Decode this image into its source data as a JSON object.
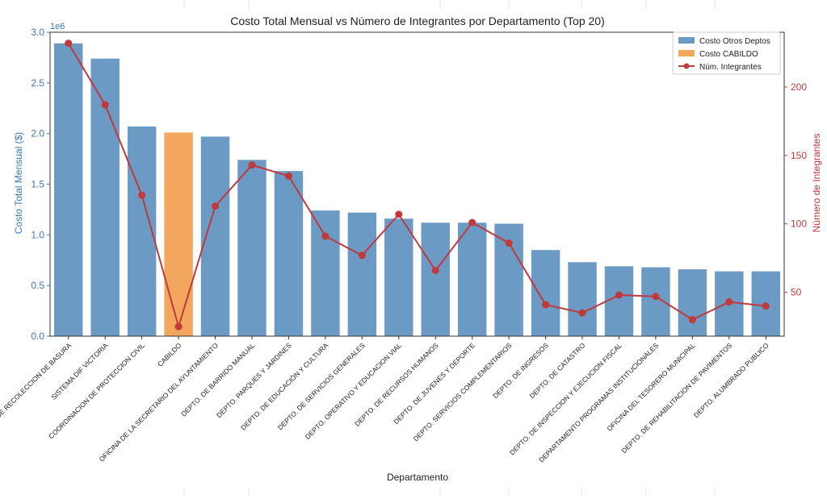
{
  "chart_data": {
    "type": "bar",
    "title": "Costo Total Mensual vs Número de Integrantes por Departamento (Top 20)",
    "xlabel": "Departamento",
    "ylabel_left": "Costo Total Mensual ($)",
    "ylabel_right": "Número de Integrantes",
    "left_axis_multiplier": "1e6",
    "left_ylim": [
      0,
      3.0
    ],
    "left_ticks": [
      "0.0",
      "0.5",
      "1.0",
      "1.5",
      "2.0",
      "2.5",
      "3.0"
    ],
    "right_ylim": [
      18,
      240
    ],
    "right_ticks": [
      "50",
      "100",
      "150",
      "200"
    ],
    "legend_position": "top-right",
    "legend": [
      "Costo Otros Deptos",
      "Costo CABILDO",
      "Núm. Integrantes"
    ],
    "categories": [
      "DEPTO. DE RECOLECCION DE BASURA",
      "SISTEMA DIF VICTORIA",
      "COORDINACION DE PROTECCION CIVIL",
      "CABILDO",
      "OFICINA DE LA SECRETARIO DEL AYUNTAMIENTO",
      "DEPTO. DE BARRIDO MANUAL",
      "DEPTO. PARQUES Y JARDINES",
      "DEPTO. DE EDUCACIÓN Y CULTURA",
      "DEPTO. DE SERVICIOS GENERALES",
      "DEPTO. OPERATIVO Y EDUCACION VIAL",
      "DEPTO. DE RECURSOS HUMANOS",
      "DEPTO. DE JUVENES Y DEPORTE",
      "DEPTO. SERVICIOS COMPLEMENTARIOS",
      "DEPTO. DE INGRESOS",
      "DEPTO. DE CATASTRO",
      "DEPTO. DE INSPECCION Y EJECUCION FISCAL",
      "DEPARTAMENTO PROGRAMAS INSTITUCIONALES",
      "OFICINA DEL TESORERO MUNICIPAL",
      "DEPTO. DE REHABILITACION DE PAVIMENTOS",
      "DEPTO. ALUMBRADO PUBLICO"
    ],
    "highlight_category": "CABILDO",
    "series": [
      {
        "name": "Costo Otros Deptos",
        "axis": "left",
        "kind": "bar",
        "values": [
          2.89,
          2.74,
          2.07,
          2.01,
          1.97,
          1.74,
          1.63,
          1.24,
          1.22,
          1.16,
          1.12,
          1.12,
          1.11,
          0.85,
          0.73,
          0.69,
          0.68,
          0.66,
          0.64,
          0.64
        ]
      },
      {
        "name": "Núm. Integrantes",
        "axis": "right",
        "kind": "line",
        "values": [
          232,
          187,
          121,
          25,
          113,
          143,
          135,
          91,
          77,
          107,
          66,
          101,
          86,
          41,
          35,
          48,
          47,
          30,
          43,
          40
        ]
      }
    ],
    "colors": {
      "bar_default": "#6b9ac4",
      "bar_highlight": "#f2a65e",
      "line": "#c0393b",
      "left_axis": "#3a78b0",
      "right_axis": "#c0393b"
    }
  }
}
